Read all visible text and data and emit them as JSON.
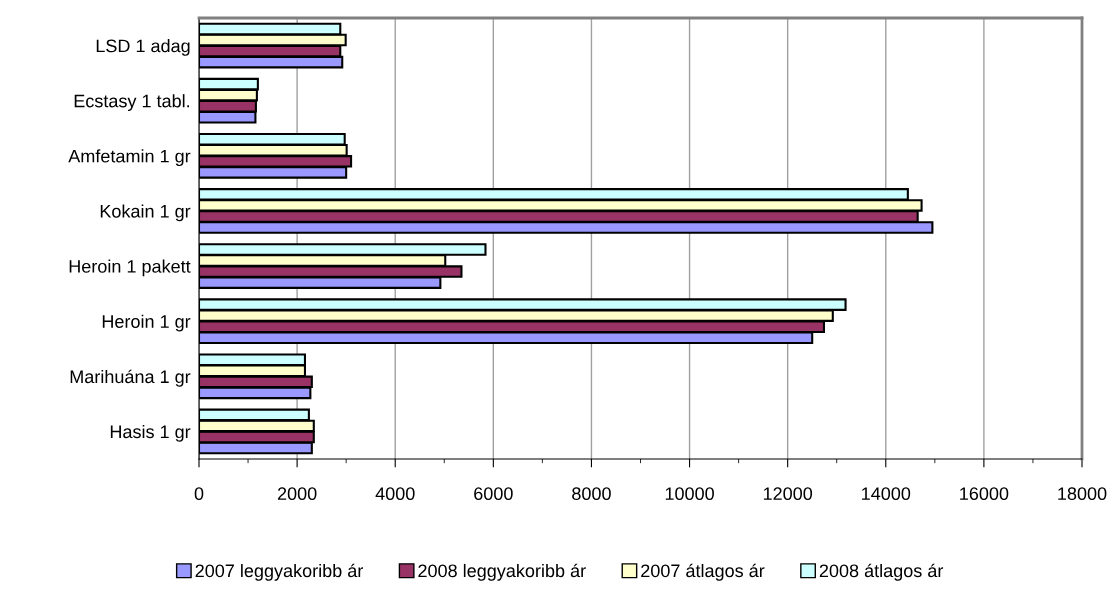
{
  "chart_data": {
    "type": "bar",
    "orientation": "horizontal",
    "categories": [
      "LSD 1 adag",
      "Ecstasy 1 tabl.",
      "Amfetamin 1 gr",
      "Kokain 1 gr",
      "Heroin 1 pakett",
      "Heroin 1 gr",
      "Marihuána 1 gr",
      "Hasis 1 gr"
    ],
    "series": [
      {
        "name": "2007 leggyakoribb ár",
        "color": "#9999ff",
        "values": [
          2920,
          1150,
          3000,
          14950,
          4920,
          12500,
          2270,
          2300
        ]
      },
      {
        "name": "2008 leggyakoribb ár",
        "color": "#993366",
        "values": [
          2880,
          1160,
          3100,
          14650,
          5350,
          12740,
          2300,
          2340
        ]
      },
      {
        "name": "2007 átlagos ár",
        "color": "#ffffcc",
        "values": [
          2990,
          1180,
          3010,
          14730,
          5020,
          12920,
          2160,
          2340
        ]
      },
      {
        "name": "2008 átlagos ár",
        "color": "#ccffff",
        "values": [
          2880,
          1200,
          2970,
          14450,
          5840,
          13180,
          2160,
          2240
        ]
      }
    ],
    "xlim": [
      0,
      18000
    ],
    "xticks": [
      0,
      2000,
      4000,
      6000,
      8000,
      10000,
      12000,
      14000,
      16000,
      18000
    ],
    "grid": "x",
    "legend": "bottom"
  }
}
